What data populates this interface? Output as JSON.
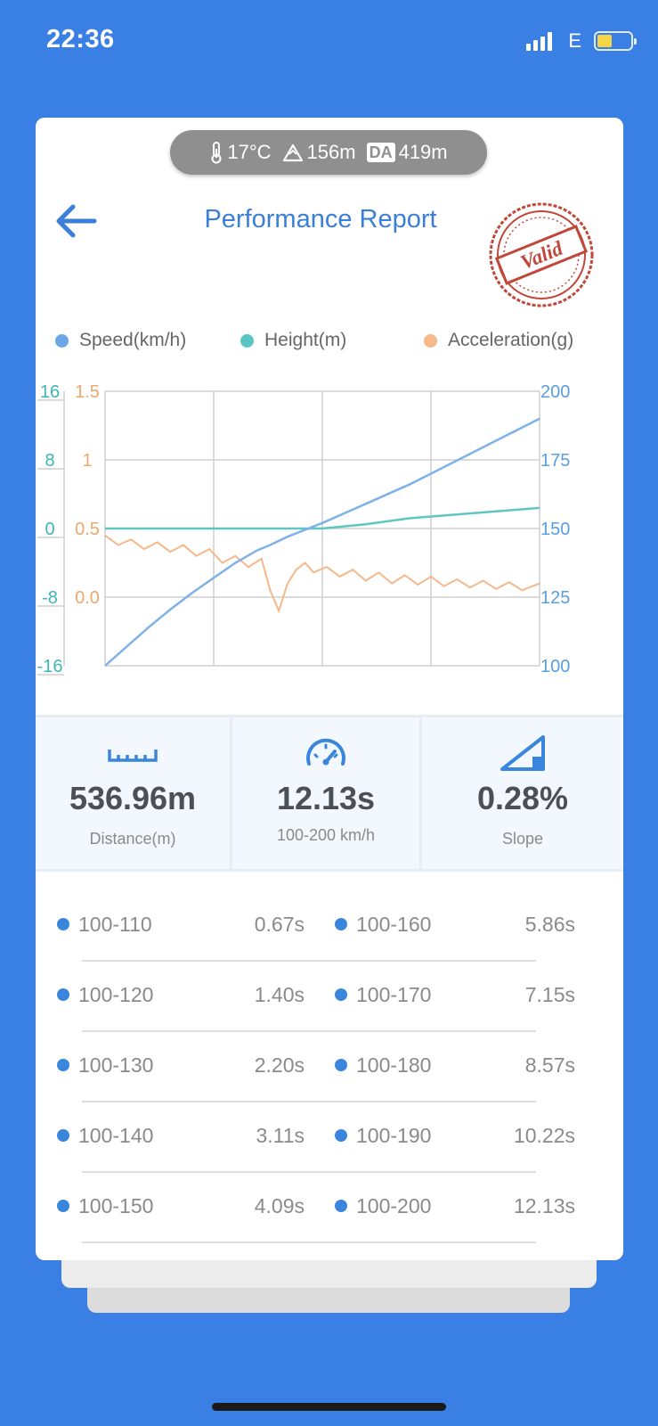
{
  "status_bar": {
    "time": "22:36",
    "network": "E"
  },
  "environment": {
    "temperature": "17°C",
    "altitude": "156m",
    "density_altitude_badge": "DA",
    "density_altitude": "419m"
  },
  "header": {
    "title": "Performance Report",
    "stamp_text": "Valid"
  },
  "legend": [
    {
      "label": "Speed(km/h)",
      "color": "#6ba6e6"
    },
    {
      "label": "Height(m)",
      "color": "#5bc4c4"
    },
    {
      "label": "Acceleration(g)",
      "color": "#f5b98a"
    }
  ],
  "chart_data": {
    "type": "line",
    "x_gridlines": 4,
    "axes": {
      "height_left": {
        "ticks": [
          "16",
          "8",
          "0",
          "-8",
          "-16"
        ],
        "range": [
          -16,
          16
        ],
        "color": "#3fb6b6"
      },
      "accel_left": {
        "ticks": [
          "1.5",
          "1",
          "0.5",
          "0.0"
        ],
        "color": "#f0a76a"
      },
      "speed_right": {
        "ticks": [
          "200",
          "175",
          "150",
          "125",
          "100"
        ],
        "range": [
          100,
          200
        ],
        "color": "#5a9ee0"
      }
    },
    "series": [
      {
        "name": "Speed(km/h)",
        "color": "#7fb1e8",
        "x": [
          0,
          0.05,
          0.1,
          0.15,
          0.2,
          0.25,
          0.3,
          0.35,
          0.38,
          0.42,
          0.46,
          0.5,
          0.6,
          0.7,
          0.8,
          0.9,
          1.0
        ],
        "values": [
          100,
          107,
          114,
          120.5,
          126.5,
          132,
          137.5,
          142,
          144,
          147,
          149.5,
          152,
          159,
          166,
          174,
          182,
          190
        ]
      },
      {
        "name": "Height(m)",
        "color": "#5fc6c0",
        "x": [
          0,
          0.2,
          0.4,
          0.5,
          0.6,
          0.7,
          0.8,
          0.9,
          1.0
        ],
        "values": [
          0,
          0,
          0,
          0,
          0.5,
          1.2,
          1.6,
          2.0,
          2.4
        ]
      },
      {
        "name": "Acceleration(g)",
        "color": "#f5b88a",
        "x": [
          0,
          0.03,
          0.06,
          0.09,
          0.12,
          0.15,
          0.18,
          0.21,
          0.24,
          0.27,
          0.3,
          0.33,
          0.36,
          0.38,
          0.4,
          0.42,
          0.44,
          0.46,
          0.48,
          0.51,
          0.54,
          0.57,
          0.6,
          0.63,
          0.66,
          0.69,
          0.72,
          0.75,
          0.78,
          0.81,
          0.84,
          0.87,
          0.9,
          0.93,
          0.96,
          1.0
        ],
        "values": [
          0.45,
          0.38,
          0.42,
          0.35,
          0.4,
          0.33,
          0.38,
          0.3,
          0.35,
          0.25,
          0.3,
          0.22,
          0.28,
          0.05,
          -0.1,
          0.1,
          0.2,
          0.25,
          0.18,
          0.22,
          0.15,
          0.2,
          0.12,
          0.18,
          0.1,
          0.16,
          0.09,
          0.15,
          0.08,
          0.13,
          0.07,
          0.12,
          0.06,
          0.11,
          0.05,
          0.1
        ]
      }
    ]
  },
  "stats": [
    {
      "icon": "ruler-icon",
      "value": "536.96m",
      "label": "Distance(m)"
    },
    {
      "icon": "speedometer-icon",
      "value": "12.13s",
      "label": "100-200 km/h"
    },
    {
      "icon": "slope-icon",
      "value": "0.28%",
      "label": "Slope"
    }
  ],
  "splits": [
    {
      "left": {
        "range": "100-110",
        "time": "0.67s"
      },
      "right": {
        "range": "100-160",
        "time": "5.86s"
      }
    },
    {
      "left": {
        "range": "100-120",
        "time": "1.40s"
      },
      "right": {
        "range": "100-170",
        "time": "7.15s"
      }
    },
    {
      "left": {
        "range": "100-130",
        "time": "2.20s"
      },
      "right": {
        "range": "100-180",
        "time": "8.57s"
      }
    },
    {
      "left": {
        "range": "100-140",
        "time": "3.11s"
      },
      "right": {
        "range": "100-190",
        "time": "10.22s"
      }
    },
    {
      "left": {
        "range": "100-150",
        "time": "4.09s"
      },
      "right": {
        "range": "100-200",
        "time": "12.13s"
      }
    }
  ]
}
